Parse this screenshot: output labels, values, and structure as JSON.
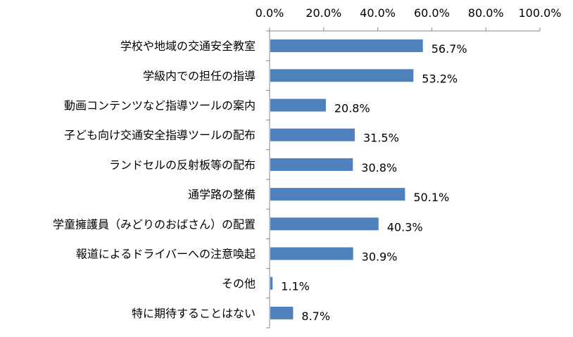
{
  "chart_data": {
    "type": "bar",
    "orientation": "horizontal",
    "title": "",
    "xlabel": "",
    "ylabel": "",
    "xlim": [
      0,
      100
    ],
    "x_ticks": [
      "0.0%",
      "20.0%",
      "40.0%",
      "60.0%",
      "80.0%",
      "100.0%"
    ],
    "x_axis_position": "top",
    "grid": false,
    "legend": "none",
    "bar_color": "#4F81BD",
    "categories": [
      "学校や地域の交通安全教室",
      "学級内での担任の指導",
      "動画コンテンツなど指導ツールの案内",
      "子ども向け交通安全指導ツールの配布",
      "ランドセルの反射板等の配布",
      "通学路の整備",
      "学童擁護員（みどりのおばさん）の配置",
      "報道によるドライバーへの注意喚起",
      "その他",
      "特に期待することはない"
    ],
    "values": [
      56.7,
      53.2,
      20.8,
      31.5,
      30.8,
      50.1,
      40.3,
      30.9,
      1.1,
      8.7
    ],
    "value_labels": [
      "56.7%",
      "53.2%",
      "20.8%",
      "31.5%",
      "30.8%",
      "50.1%",
      "40.3%",
      "30.9%",
      "1.1%",
      "8.7%"
    ]
  }
}
